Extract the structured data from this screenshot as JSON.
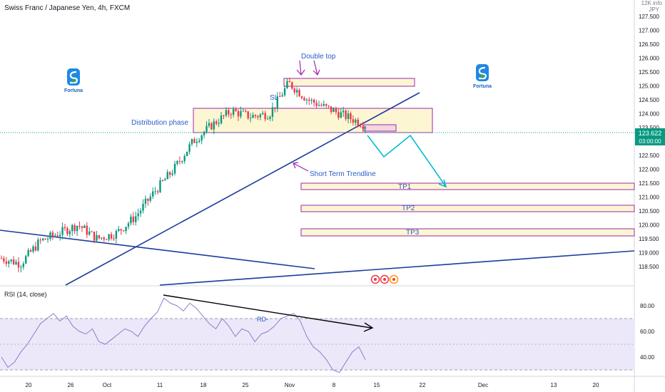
{
  "header": {
    "title": "Swiss Franc / Japanese Yen, 4h, FXCM"
  },
  "currency": {
    "line1": "12K info",
    "line2": "JPY"
  },
  "price_scale": {
    "labels": [
      "127.500",
      "127.000",
      "126.500",
      "126.000",
      "125.500",
      "125.000",
      "124.500",
      "124.000",
      "123.500",
      "123.000",
      "122.500",
      "122.000",
      "121.500",
      "121.000",
      "120.500",
      "120.000",
      "119.500",
      "119.000",
      "118.500"
    ]
  },
  "last_price": {
    "value": "123.622",
    "countdown": "03:00:00",
    "color": "#089981"
  },
  "rsi": {
    "title": "RSI (14, close)",
    "labels": [
      "80.00",
      "60.00",
      "40.00"
    ],
    "divergence_label": "RD-"
  },
  "time_axis": {
    "labels": [
      "20",
      "26",
      "Oct",
      "11",
      "18",
      "25",
      "Nov",
      "8",
      "15",
      "22",
      "Dec",
      "13",
      "20"
    ]
  },
  "annotations": {
    "double_top": "Double top",
    "sl": "SL",
    "distribution": "Distribution phase",
    "trendline": "Short Term Trendline",
    "tp1": "TP1",
    "tp2": "TP2",
    "tp3": "TP3"
  },
  "logo": {
    "text": "Fortuna"
  },
  "colors": {
    "up": "#089981",
    "down": "#f23645",
    "annotation": "#2a5cc7",
    "trend": "#1b3c9e",
    "zone_fill": "#fdf6d2",
    "zone_border": "#9c27b0",
    "path": "#00bcd4",
    "rsi_line": "#8c7ec9",
    "rsi_band": "#ece8f9"
  },
  "chart_data": {
    "type": "candlestick",
    "title": "Swiss Franc / Japanese Yen, 4h, FXCM",
    "ylim": [
      118.4,
      127.6
    ],
    "price_series": [
      {
        "t": "Sep 17",
        "p": 118.8
      },
      {
        "t": "Sep 20",
        "p": 118.6
      },
      {
        "t": "Sep 23",
        "p": 119.4
      },
      {
        "t": "Sep 26",
        "p": 119.7
      },
      {
        "t": "Sep 29",
        "p": 120.0
      },
      {
        "t": "Oct 1",
        "p": 119.5
      },
      {
        "t": "Oct 4",
        "p": 119.7
      },
      {
        "t": "Oct 7",
        "p": 120.3
      },
      {
        "t": "Oct 10",
        "p": 121.2
      },
      {
        "t": "Oct 12",
        "p": 122.0
      },
      {
        "t": "Oct 14",
        "p": 123.0
      },
      {
        "t": "Oct 16",
        "p": 123.6
      },
      {
        "t": "Oct 20",
        "p": 124.1
      },
      {
        "t": "Oct 25",
        "p": 123.9
      },
      {
        "t": "Oct 29",
        "p": 124.0
      },
      {
        "t": "Nov 2",
        "p": 125.1
      },
      {
        "t": "Nov 5",
        "p": 124.5
      },
      {
        "t": "Nov 8",
        "p": 124.2
      },
      {
        "t": "Nov 10",
        "p": 123.9
      },
      {
        "t": "Nov 12",
        "p": 123.6
      }
    ],
    "zones": [
      {
        "label": "Double top",
        "from": 125.45,
        "to": 125.2
      },
      {
        "label": "Distribution phase",
        "from": 124.45,
        "to": 123.7
      },
      {
        "label": "SL",
        "from": 123.75,
        "to": 123.6
      },
      {
        "label": "TP1",
        "from": 121.85,
        "to": 121.7
      },
      {
        "label": "TP2",
        "from": 121.1,
        "to": 120.95
      },
      {
        "label": "TP3",
        "from": 120.3,
        "to": 120.1
      }
    ],
    "rsi": {
      "name": "RSI (14, close)",
      "ylim": [
        20,
        90
      ],
      "levels": [
        70,
        50,
        30
      ],
      "values": [
        40,
        32,
        36,
        44,
        50,
        58,
        66,
        70,
        74,
        68,
        72,
        64,
        60,
        58,
        62,
        52,
        50,
        54,
        58,
        62,
        60,
        56,
        64,
        70,
        75,
        86,
        82,
        80,
        76,
        82,
        78,
        72,
        66,
        62,
        70,
        64,
        56,
        62,
        60,
        52,
        58,
        60,
        64,
        70,
        72,
        74,
        68,
        56,
        48,
        44,
        38,
        30,
        28,
        36,
        44,
        48,
        38
      ]
    }
  }
}
